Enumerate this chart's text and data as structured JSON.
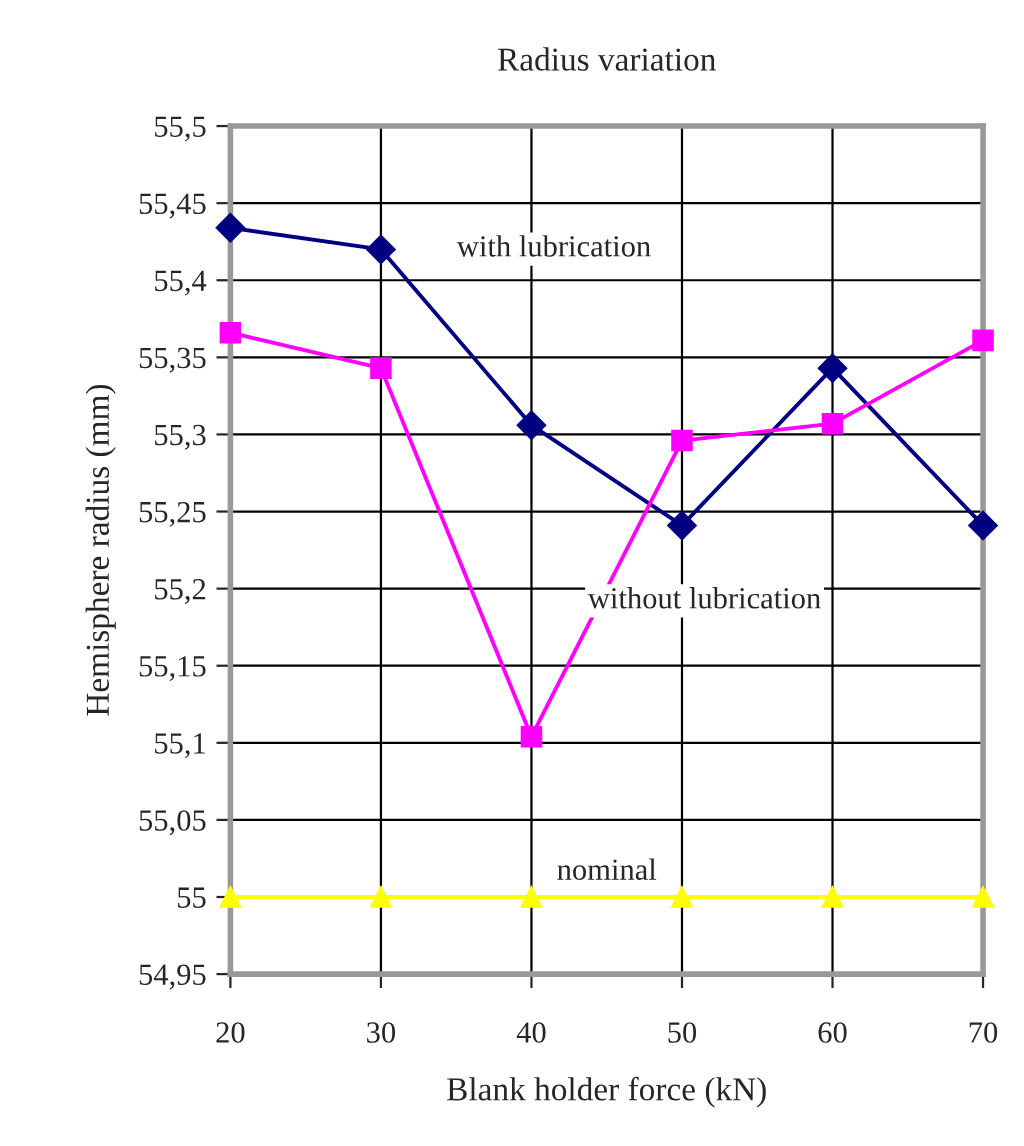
{
  "chart_data": {
    "type": "line",
    "title": "Radius variation",
    "xlabel": "Blank holder force (kN)",
    "ylabel": "Hemisphere radius (mm)",
    "x": [
      20,
      30,
      40,
      50,
      60,
      70
    ],
    "series": [
      {
        "name": "with lubrication",
        "color": "#000080",
        "marker": "diamond",
        "values": [
          55.434,
          55.42,
          55.306,
          55.241,
          55.343,
          55.241
        ]
      },
      {
        "name": "without lubrication",
        "color": "#ff00ff",
        "marker": "square",
        "values": [
          55.366,
          55.343,
          55.104,
          55.296,
          55.307,
          55.361
        ]
      },
      {
        "name": "nominal",
        "color": "#ffff00",
        "marker": "triangle",
        "values": [
          55,
          55,
          55,
          55,
          55,
          55
        ]
      }
    ],
    "xlim": [
      20,
      70
    ],
    "xticks": [
      20,
      30,
      40,
      50,
      60,
      70
    ],
    "ylim": [
      54.95,
      55.5
    ],
    "yticks": [
      {
        "value": 54.95,
        "label": "54,95"
      },
      55,
      {
        "value": 55.05,
        "label": "55,05"
      },
      {
        "value": 55.1,
        "label": "55,1"
      },
      {
        "value": 55.15,
        "label": "55,15"
      },
      {
        "value": 55.2,
        "label": "55,2"
      },
      {
        "value": 55.25,
        "label": "55,25"
      },
      {
        "value": 55.3,
        "label": "55,3"
      },
      {
        "value": 55.35,
        "label": "55,35"
      },
      {
        "value": 55.4,
        "label": "55,4"
      },
      {
        "value": 55.45,
        "label": "55,45"
      },
      {
        "value": 55.5,
        "label": "55,5"
      }
    ],
    "grid": true,
    "legend": false,
    "line_style": "solid"
  }
}
